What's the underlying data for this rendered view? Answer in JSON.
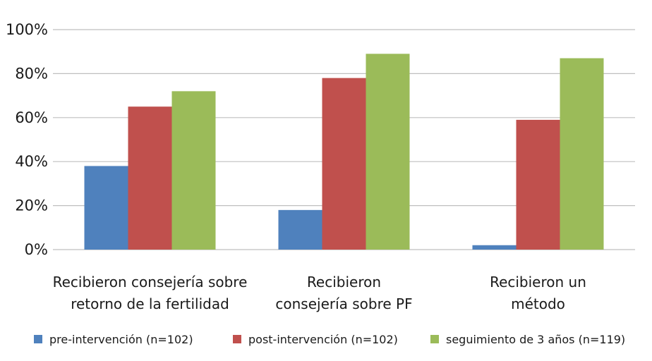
{
  "chart_data": {
    "type": "bar",
    "title": "",
    "xlabel": "",
    "ylabel": "",
    "ylim": [
      0,
      100
    ],
    "y_ticks": [
      "0%",
      "20%",
      "40%",
      "60%",
      "80%",
      "100%"
    ],
    "y_tick_values": [
      0,
      20,
      40,
      60,
      80,
      100
    ],
    "grid": true,
    "legend_position": "bottom",
    "categories": [
      [
        "Recibieron consejería sobre",
        "retorno de la fertilidad"
      ],
      [
        "Recibieron",
        "consejería sobre PF"
      ],
      [
        "Recibieron un",
        "método"
      ]
    ],
    "series": [
      {
        "name": "pre-intervención (n=102)",
        "color": "#4f81bd",
        "values": [
          38,
          18,
          2
        ]
      },
      {
        "name": "post-intervención (n=102)",
        "color": "#c0504d",
        "values": [
          65,
          78,
          59
        ]
      },
      {
        "name": "seguimiento de 3 años (n=119)",
        "color": "#9bbb59",
        "values": [
          72,
          89,
          87
        ]
      }
    ]
  }
}
